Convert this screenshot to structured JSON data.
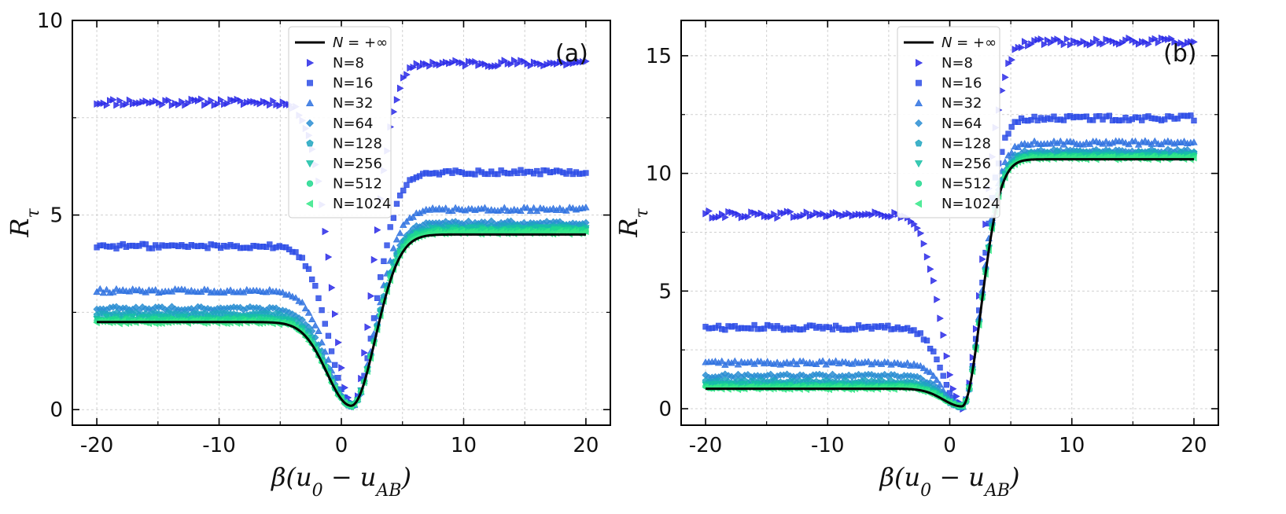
{
  "chart_data": [
    {
      "type": "scatter",
      "panel_label": "(a)",
      "xlabel": "β(u₀ − u_AB)",
      "ylabel": "R_τ",
      "xlim": [
        -22,
        22
      ],
      "ylim": [
        -0.4,
        10
      ],
      "xticks": [
        -20,
        -10,
        0,
        10,
        20
      ],
      "xtick_labels": [
        "-20",
        "-10",
        "0",
        "10",
        "20"
      ],
      "yticks": [
        0,
        5,
        10
      ],
      "ytick_labels": [
        "0",
        "5",
        "10"
      ],
      "grid": true,
      "legend_position": "top-center",
      "infinite_label": "N = +∞",
      "curve": {
        "x0": 0.8,
        "floor": 0.1,
        "left": 2.25,
        "right": 4.5,
        "width": 2.8
      },
      "series": [
        {
          "name": "N=8",
          "marker": "tri-right",
          "color": "#2b2be8",
          "left": 7.9,
          "right": 8.9,
          "center": 0.9,
          "width": 2.4,
          "noise": 0.07
        },
        {
          "name": "N=16",
          "marker": "square",
          "color": "#2e4ee6",
          "left": 4.2,
          "right": 6.1,
          "center": 0.9,
          "width": 2.6,
          "noise": 0.05
        },
        {
          "name": "N=32",
          "marker": "tri-up",
          "color": "#2f72e0",
          "left": 3.05,
          "right": 5.15,
          "center": 0.85,
          "width": 2.7,
          "noise": 0.04
        },
        {
          "name": "N=64",
          "marker": "diamond",
          "color": "#2a8ed2",
          "left": 2.6,
          "right": 4.8,
          "center": 0.85,
          "width": 2.75,
          "noise": 0.04
        },
        {
          "name": "N=128",
          "marker": "pentagon",
          "color": "#1fa5c0",
          "left": 2.45,
          "right": 4.7,
          "center": 0.8,
          "width": 2.75,
          "noise": 0.035
        },
        {
          "name": "N=256",
          "marker": "tri-down",
          "color": "#17bfa6",
          "left": 2.35,
          "right": 4.65,
          "center": 0.8,
          "width": 2.8,
          "noise": 0.035
        },
        {
          "name": "N=512",
          "marker": "circle",
          "color": "#20d88e",
          "left": 2.3,
          "right": 4.6,
          "center": 0.8,
          "width": 2.8,
          "noise": 0.03
        },
        {
          "name": "N=1024",
          "marker": "tri-left",
          "color": "#35e888",
          "left": 2.25,
          "right": 4.55,
          "center": 0.8,
          "width": 2.8,
          "noise": 0.03
        }
      ]
    },
    {
      "type": "scatter",
      "panel_label": "(b)",
      "xlabel": "β(u₀ − u_AB)",
      "ylabel": "R_τ",
      "xlim": [
        -22,
        22
      ],
      "ylim": [
        -0.7,
        16.5
      ],
      "xticks": [
        -20,
        -10,
        0,
        10,
        20
      ],
      "xtick_labels": [
        "-20",
        "-10",
        "0",
        "10",
        "20"
      ],
      "yticks": [
        0,
        5,
        10,
        15
      ],
      "ytick_labels": [
        "0",
        "5",
        "10",
        "15"
      ],
      "grid": true,
      "legend_position": "top-center",
      "infinite_label": "N = +∞",
      "curve": {
        "x0": 1.0,
        "floor": 0.1,
        "left": 0.85,
        "right": 10.6,
        "width": 2.2
      },
      "series": [
        {
          "name": "N=8",
          "marker": "tri-right",
          "color": "#2b2be8",
          "left": 8.25,
          "right": 15.6,
          "center": 1.0,
          "width": 2.3,
          "noise": 0.12
        },
        {
          "name": "N=16",
          "marker": "square",
          "color": "#2e4ee6",
          "left": 3.45,
          "right": 12.35,
          "center": 1.0,
          "width": 2.2,
          "noise": 0.09
        },
        {
          "name": "N=32",
          "marker": "tri-up",
          "color": "#2f72e0",
          "left": 1.95,
          "right": 11.3,
          "center": 1.0,
          "width": 2.2,
          "noise": 0.07
        },
        {
          "name": "N=64",
          "marker": "diamond",
          "color": "#2a8ed2",
          "left": 1.4,
          "right": 10.95,
          "center": 1.0,
          "width": 2.2,
          "noise": 0.06
        },
        {
          "name": "N=128",
          "marker": "pentagon",
          "color": "#1fa5c0",
          "left": 1.15,
          "right": 10.85,
          "center": 1.0,
          "width": 2.2,
          "noise": 0.06
        },
        {
          "name": "N=256",
          "marker": "tri-down",
          "color": "#17bfa6",
          "left": 1.0,
          "right": 10.75,
          "center": 1.0,
          "width": 2.2,
          "noise": 0.05
        },
        {
          "name": "N=512",
          "marker": "circle",
          "color": "#20d88e",
          "left": 0.93,
          "right": 10.7,
          "center": 1.0,
          "width": 2.2,
          "noise": 0.05
        },
        {
          "name": "N=1024",
          "marker": "tri-left",
          "color": "#35e888",
          "left": 0.88,
          "right": 10.65,
          "center": 1.0,
          "width": 2.2,
          "noise": 0.05
        }
      ]
    }
  ]
}
